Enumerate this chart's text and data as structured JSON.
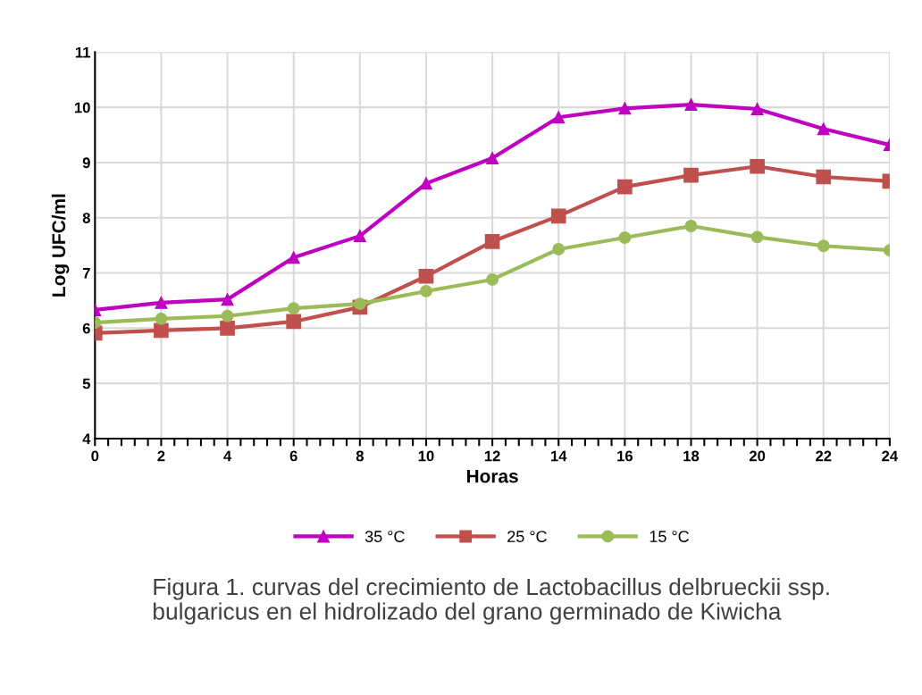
{
  "chart_data": {
    "type": "line",
    "xlabel": "Horas",
    "ylabel": "Log UFC/ml",
    "x": [
      0,
      2,
      4,
      6,
      8,
      10,
      12,
      14,
      16,
      18,
      20,
      22,
      24
    ],
    "series": [
      {
        "name": "35 °C",
        "color": "#c000c0",
        "marker": "triangle",
        "values": [
          6.33,
          6.46,
          6.52,
          7.28,
          7.67,
          8.62,
          9.08,
          9.82,
          9.98,
          10.05,
          9.97,
          9.61,
          9.32
        ]
      },
      {
        "name": "25 °C",
        "color": "#c0504d",
        "marker": "square",
        "values": [
          5.91,
          5.96,
          6.0,
          6.12,
          6.38,
          6.94,
          7.57,
          8.03,
          8.56,
          8.77,
          8.93,
          8.74,
          8.66
        ]
      },
      {
        "name": "15 °C",
        "color": "#9bbb59",
        "marker": "circle",
        "values": [
          6.1,
          6.17,
          6.22,
          6.36,
          6.44,
          6.67,
          6.88,
          7.43,
          7.64,
          7.85,
          7.65,
          7.49,
          7.41
        ]
      }
    ],
    "xlim": [
      0,
      24
    ],
    "ylim": [
      4,
      11
    ],
    "xticks": [
      0,
      {
        "value": 0.4,
        "label": null
      },
      {
        "value": 0.8,
        "label": null
      },
      {
        "value": 1.2,
        "label": null
      },
      {
        "value": 1.6,
        "label": null
      },
      2,
      {
        "value": 2.4,
        "label": null
      },
      {
        "value": 2.8,
        "label": null
      },
      {
        "value": 3.2,
        "label": null
      },
      {
        "value": 3.6,
        "label": null
      },
      4,
      {
        "value": 4.4,
        "label": null
      },
      {
        "value": 4.8,
        "label": null
      },
      {
        "value": 5.2,
        "label": null
      },
      {
        "value": 5.6,
        "label": null
      },
      6,
      {
        "value": 6.4,
        "label": null
      },
      {
        "value": 6.8,
        "label": null
      },
      {
        "value": 7.2,
        "label": null
      },
      {
        "value": 7.6,
        "label": null
      },
      8,
      {
        "value": 8.4,
        "label": null
      },
      {
        "value": 8.8,
        "label": null
      },
      {
        "value": 9.2,
        "label": null
      },
      {
        "value": 9.6,
        "label": null
      },
      10,
      {
        "value": 10.4,
        "label": null
      },
      {
        "value": 10.8,
        "label": null
      },
      {
        "value": 11.2,
        "label": null
      },
      {
        "value": 11.6,
        "label": null
      },
      12,
      {
        "value": 12.4,
        "label": null
      },
      {
        "value": 12.8,
        "label": null
      },
      {
        "value": 13.2,
        "label": null
      },
      {
        "value": 13.6,
        "label": null
      },
      14,
      {
        "value": 14.4,
        "label": null
      },
      {
        "value": 14.8,
        "label": null
      },
      {
        "value": 15.2,
        "label": null
      },
      {
        "value": 15.6,
        "label": null
      },
      16,
      {
        "value": 16.4,
        "label": null
      },
      {
        "value": 16.8,
        "label": null
      },
      {
        "value": 17.2,
        "label": null
      },
      {
        "value": 17.6,
        "label": null
      },
      18,
      {
        "value": 18.4,
        "label": null
      },
      {
        "value": 18.8,
        "label": null
      },
      {
        "value": 19.2,
        "label": null
      },
      {
        "value": 19.6,
        "label": null
      },
      20,
      {
        "value": 20.4,
        "label": null
      },
      {
        "value": 20.8,
        "label": null
      },
      {
        "value": 21.2,
        "label": null
      },
      {
        "value": 21.6,
        "label": null
      },
      22,
      {
        "value": 22.4,
        "label": null
      },
      {
        "value": 22.8,
        "label": null
      },
      {
        "value": 23.2,
        "label": null
      },
      {
        "value": 23.6,
        "label": null
      },
      24
    ],
    "yticks": [
      4,
      5,
      6,
      7,
      8,
      9,
      10,
      11
    ],
    "grid": true,
    "legend": "bottom",
    "line_style": "solid",
    "annotations": [
      "Figura 1. curvas del crecimiento de Lactobacillus delbrueckii ssp. bulgaricus en el hidrolizado del grano germinado de Kiwicha"
    ]
  }
}
